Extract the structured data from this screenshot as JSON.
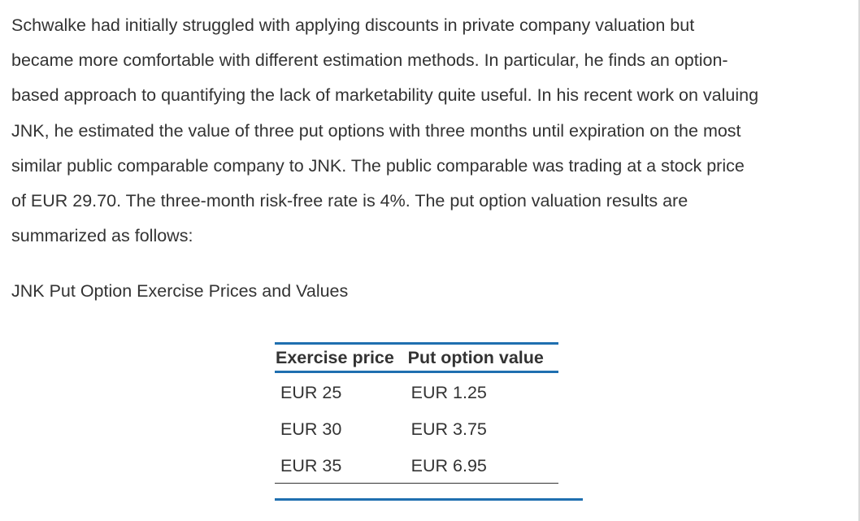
{
  "paragraph": {
    "lines": [
      "Schwalke had initially struggled with applying discounts in private company valuation but",
      "became more comfortable with different estimation methods. In particular, he finds an option-",
      "based approach to quantifying the lack of marketability quite useful. In his recent work on valuing",
      "JNK, he estimated the value of three put options with three months until expiration on the most",
      "similar public comparable company to JNK. The public comparable was trading at a stock price",
      "of EUR 29.70. The three-month risk-free rate is 4%. The put option valuation results are",
      "summarized as follows:"
    ]
  },
  "table": {
    "caption": "JNK Put Option Exercise Prices and Values",
    "headers": [
      "Exercise price",
      "Put option value"
    ],
    "rows": [
      [
        "EUR 25",
        "EUR 1.25"
      ],
      [
        "EUR 30",
        "EUR 3.75"
      ],
      [
        "EUR 35",
        "EUR 6.95"
      ]
    ]
  },
  "colors": {
    "accent": "#1f6fb0",
    "text": "#333333"
  }
}
